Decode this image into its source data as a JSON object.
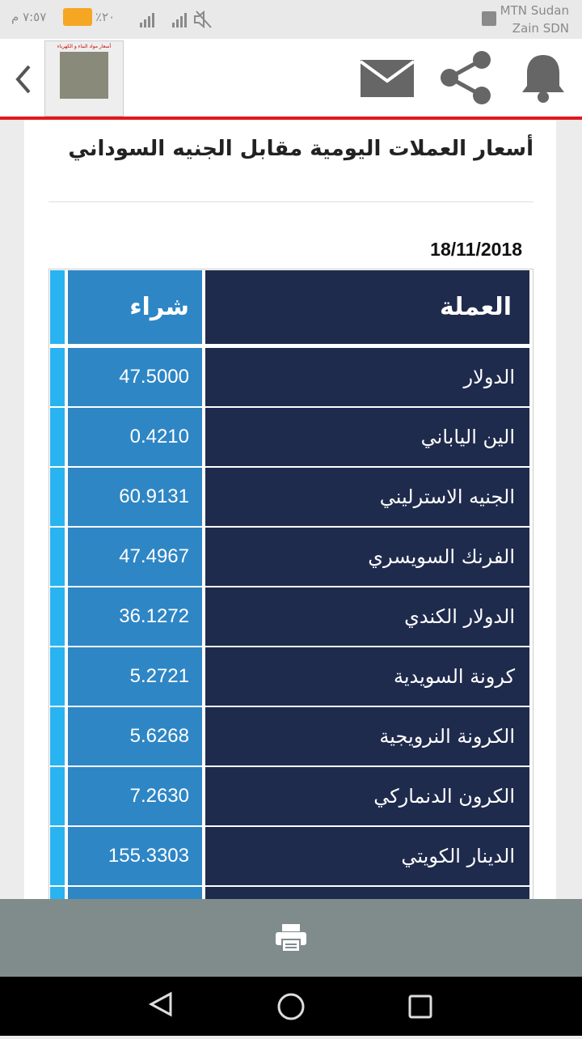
{
  "status_bar": {
    "time": "٧:٥٧ م",
    "battery": "٢٠٪",
    "carrier_1": "MTN Sudan",
    "carrier_2": "Zain SDN"
  },
  "header": {
    "logo_title": "أسعار مواد البناء و الكهرباء"
  },
  "article": {
    "title": "أسعار العملات اليومية مقابل الجنيه السوداني",
    "date": "18/11/2018"
  },
  "table": {
    "columns": [
      "العملة",
      "شراء"
    ],
    "rows": [
      [
        "الدولار",
        "47.5000"
      ],
      [
        "الين الياباني",
        "0.4210"
      ],
      [
        "الجنيه الاسترليني",
        "60.9131"
      ],
      [
        "الفرنك السويسري",
        "47.4967"
      ],
      [
        "الدولار الكندي",
        "36.1272"
      ],
      [
        "كرونة السويدية",
        "5.2721"
      ],
      [
        "الكرونة النرويجية",
        "5.6268"
      ],
      [
        "الكرون الدنماركي",
        "7.2630"
      ],
      [
        "الدينار الكويتي",
        "155.3303"
      ]
    ]
  }
}
